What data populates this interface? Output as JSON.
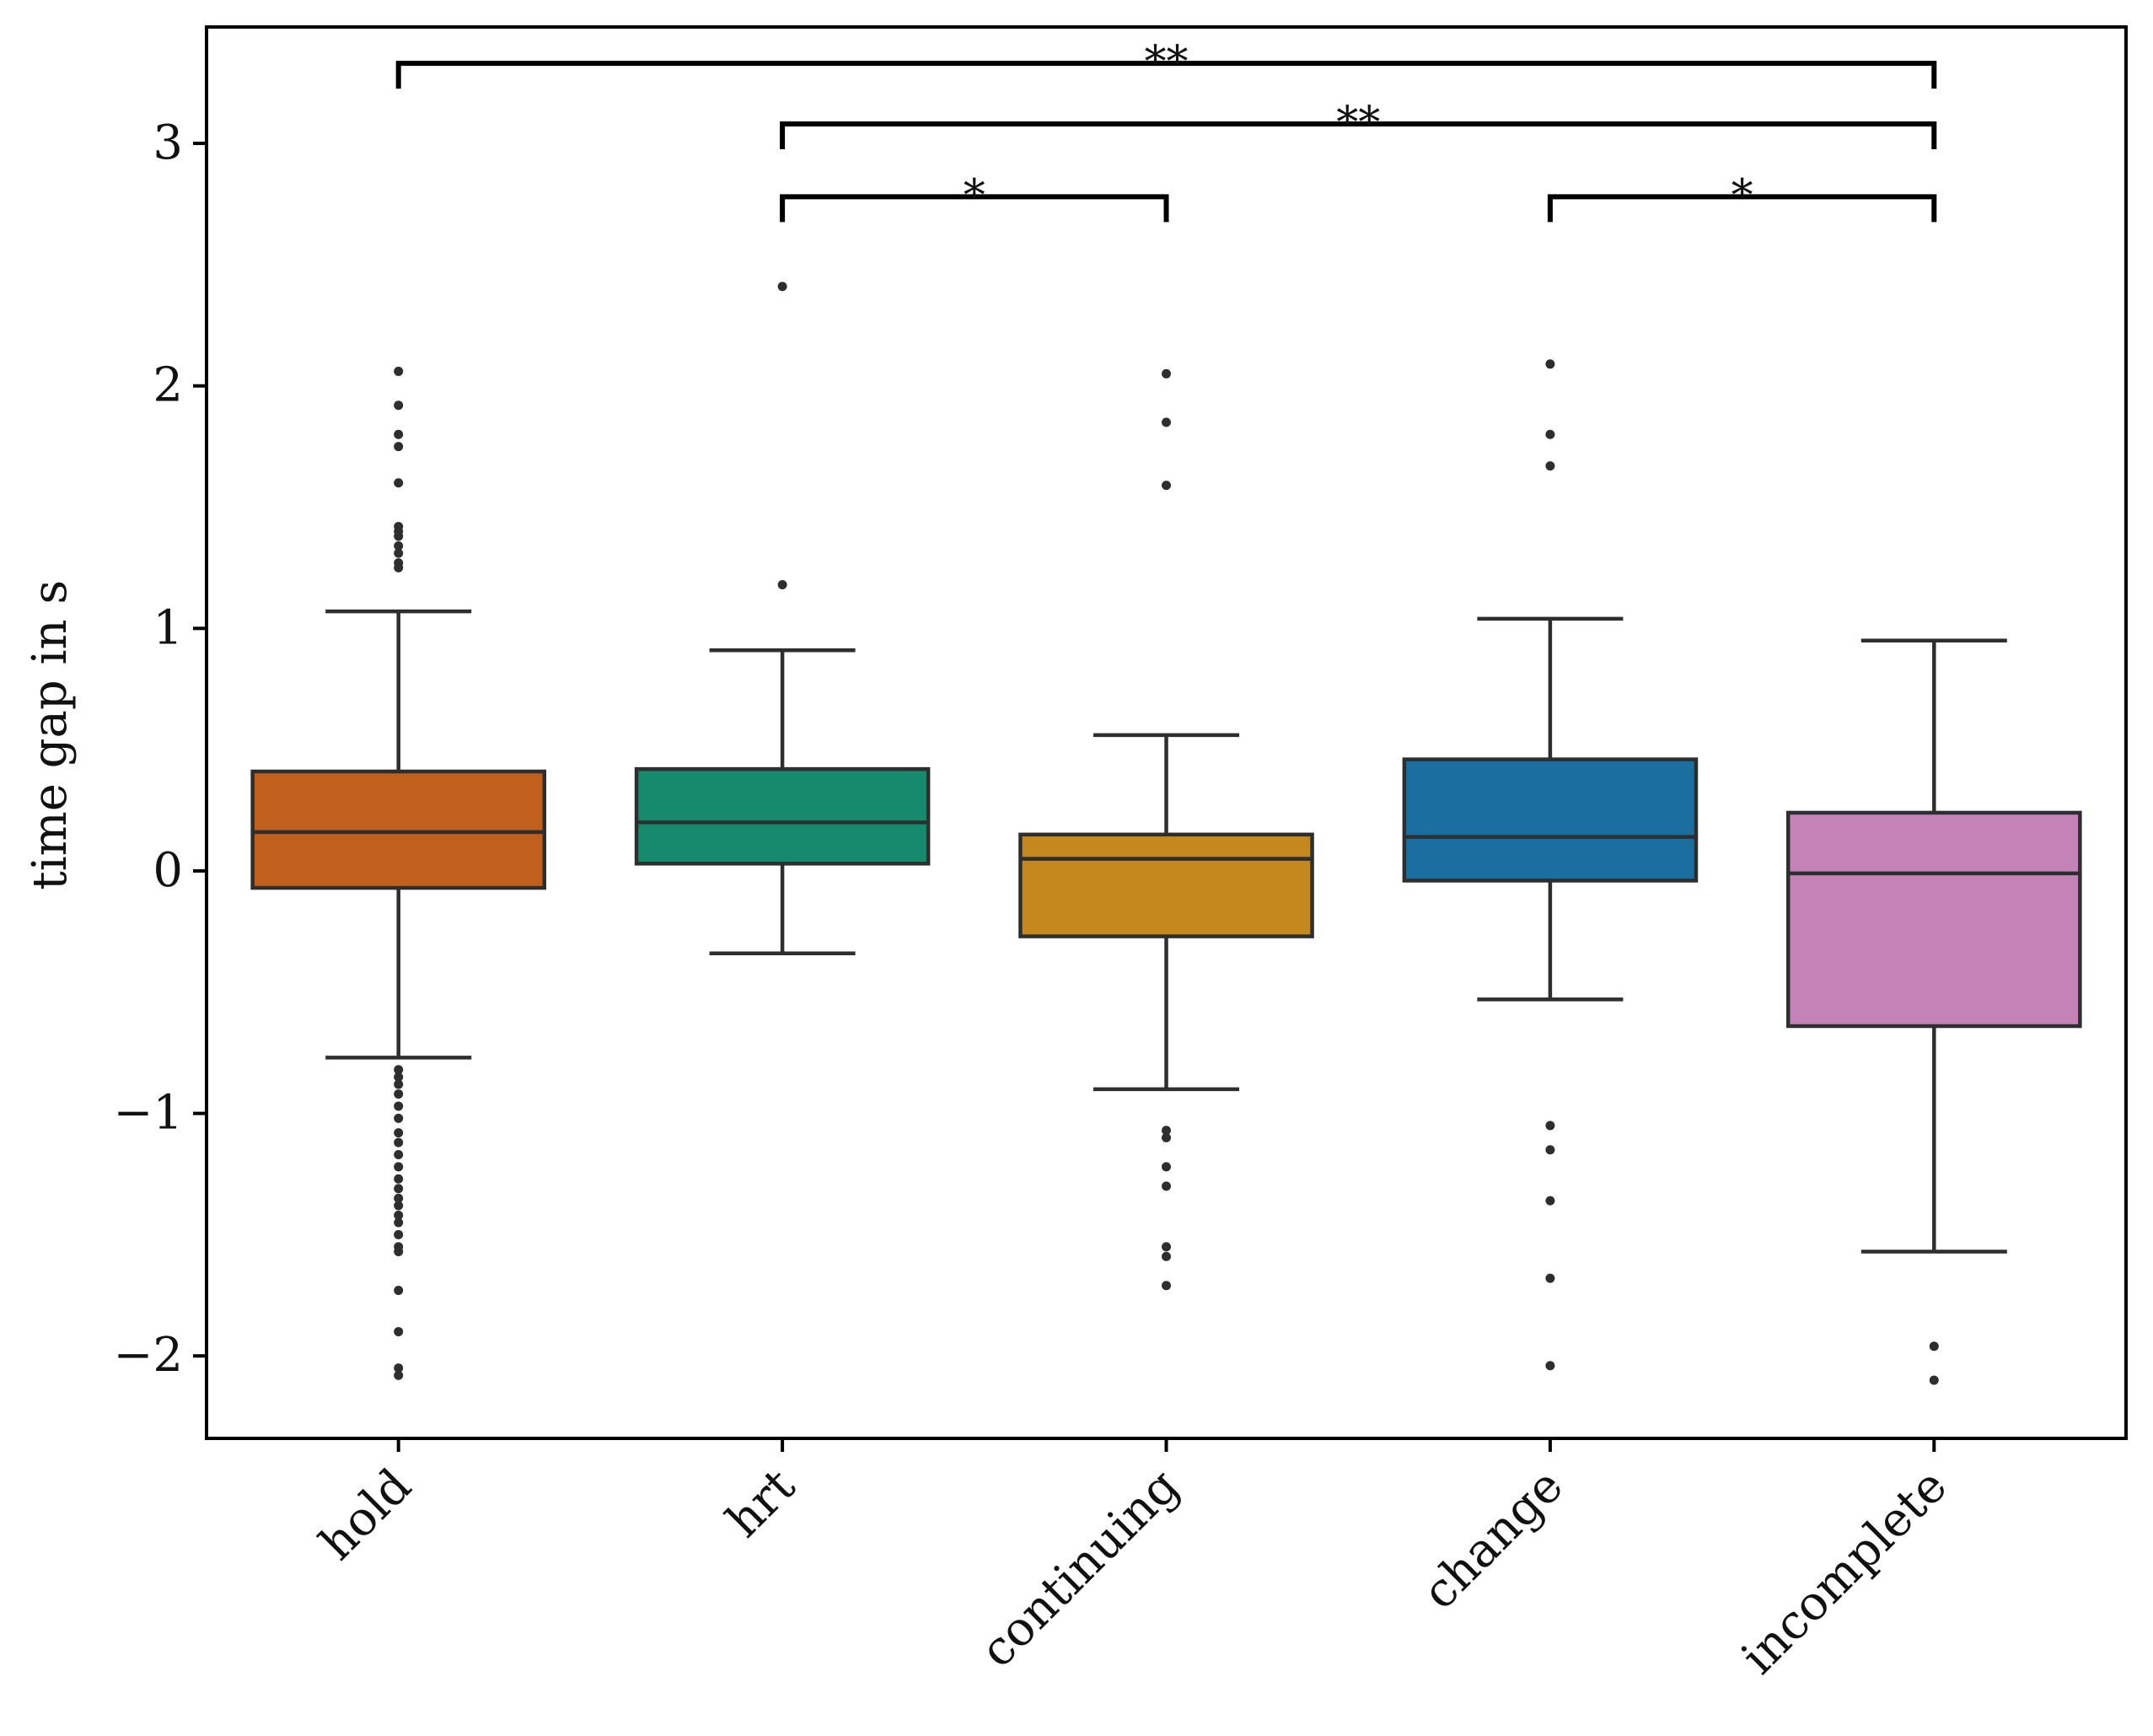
{
  "chart_data": {
    "type": "boxplot",
    "ylabel": "time gap in s",
    "xlabel": "",
    "ylim": [
      -2.34,
      3.48
    ],
    "yticks": [
      -2,
      -1,
      0,
      1,
      2,
      3
    ],
    "ytick_labels": [
      "−2",
      "−1",
      "0",
      "1",
      "2",
      "3"
    ],
    "categories": [
      "hold",
      "hrt",
      "continuing",
      "change",
      "incomplete"
    ],
    "colors": [
      "#c0601c",
      "#168a6c",
      "#c4881f",
      "#1a6ea0",
      "#c383b7"
    ],
    "grid": false,
    "boxes": [
      {
        "name": "hold",
        "whisker_low": -0.77,
        "q1": -0.07,
        "median": 0.16,
        "q3": 0.41,
        "whisker_high": 1.07,
        "outliers": [
          2.06,
          1.92,
          1.8,
          1.75,
          1.6,
          1.42,
          1.4,
          1.38,
          1.34,
          1.31,
          1.27,
          1.25,
          -0.82,
          -0.85,
          -0.88,
          -0.92,
          -0.97,
          -1.02,
          -1.08,
          -1.12,
          -1.17,
          -1.22,
          -1.27,
          -1.31,
          -1.35,
          -1.38,
          -1.42,
          -1.45,
          -1.5,
          -1.55,
          -1.57,
          -1.73,
          -1.9,
          -2.05,
          -2.08
        ]
      },
      {
        "name": "hrt",
        "whisker_low": -0.34,
        "q1": 0.03,
        "median": 0.2,
        "q3": 0.42,
        "whisker_high": 0.91,
        "outliers": [
          2.41,
          1.18
        ]
      },
      {
        "name": "continuing",
        "whisker_low": -0.9,
        "q1": -0.27,
        "median": 0.05,
        "q3": 0.15,
        "whisker_high": 0.56,
        "outliers": [
          2.05,
          1.85,
          1.59,
          -1.07,
          -1.1,
          -1.22,
          -1.3,
          -1.55,
          -1.59,
          -1.71
        ]
      },
      {
        "name": "change",
        "whisker_low": -0.53,
        "q1": -0.04,
        "median": 0.14,
        "q3": 0.46,
        "whisker_high": 1.04,
        "outliers": [
          2.09,
          1.8,
          1.67,
          -1.05,
          -1.15,
          -1.36,
          -1.68,
          -2.04
        ]
      },
      {
        "name": "incomplete",
        "whisker_low": -1.57,
        "q1": -0.64,
        "median": -0.01,
        "q3": 0.24,
        "whisker_high": 0.95,
        "outliers": [
          -1.96,
          -2.1
        ]
      }
    ],
    "significance": [
      {
        "from": 0,
        "to": 4,
        "level": 3.33,
        "label": "**"
      },
      {
        "from": 1,
        "to": 4,
        "level": 3.08,
        "label": "**"
      },
      {
        "from": 1,
        "to": 2,
        "level": 2.78,
        "label": "*"
      },
      {
        "from": 3,
        "to": 4,
        "level": 2.78,
        "label": "*"
      }
    ]
  }
}
